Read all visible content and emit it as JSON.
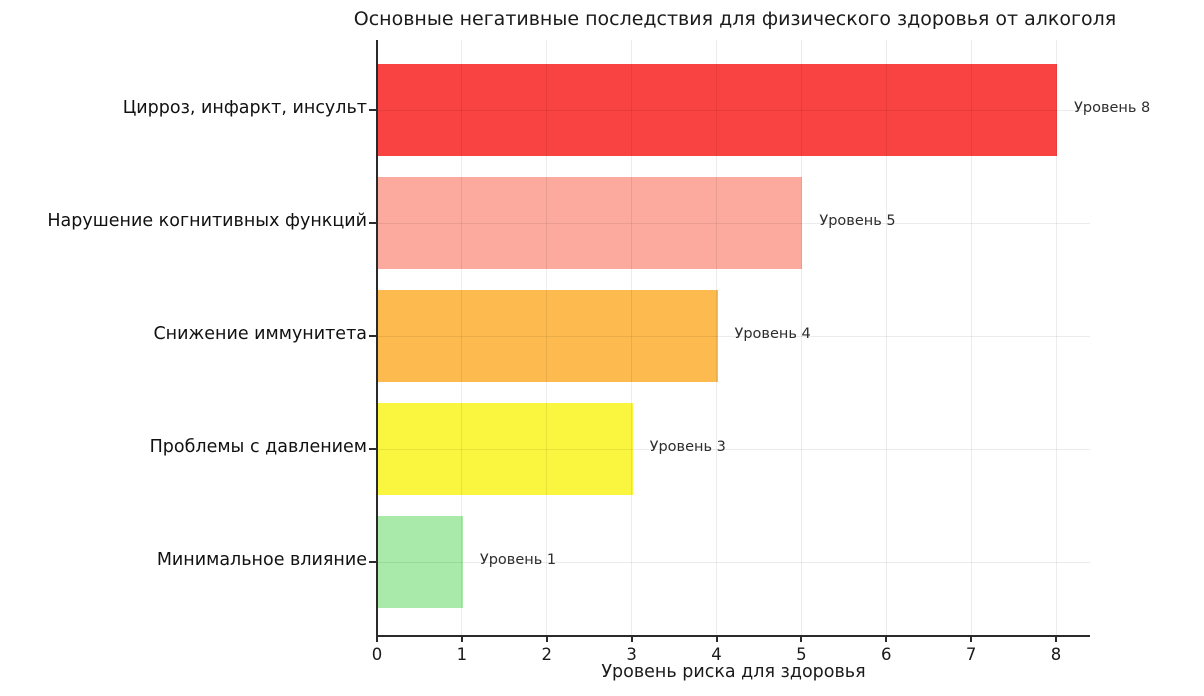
{
  "chart_data": {
    "type": "bar",
    "orientation": "horizontal",
    "title": "Основные негативные последствия для физического здоровья от алкоголя",
    "xlabel": "Уровень риска для здоровья",
    "categories": [
      "Цирроз, инфаркт, инсульт",
      "Нарушение когнитивных функций",
      "Снижение иммунитета",
      "Проблемы с давлением",
      "Минимальное влияние"
    ],
    "values": [
      8,
      5,
      4,
      3,
      1
    ],
    "bar_labels": [
      "Уровень 8",
      "Уровень 5",
      "Уровень 4",
      "Уровень 3",
      "Уровень 1"
    ],
    "bar_colors": [
      "#f94342",
      "#fca99e",
      "#fcba4f",
      "#faf53e",
      "#a9e9a9"
    ],
    "x_ticks": [
      0,
      1,
      2,
      3,
      4,
      5,
      6,
      7,
      8
    ],
    "xlim": [
      0,
      8.4
    ],
    "grid": true,
    "legend": false,
    "background_color": "#ffffff",
    "axis_color": "#2a2a2a"
  }
}
